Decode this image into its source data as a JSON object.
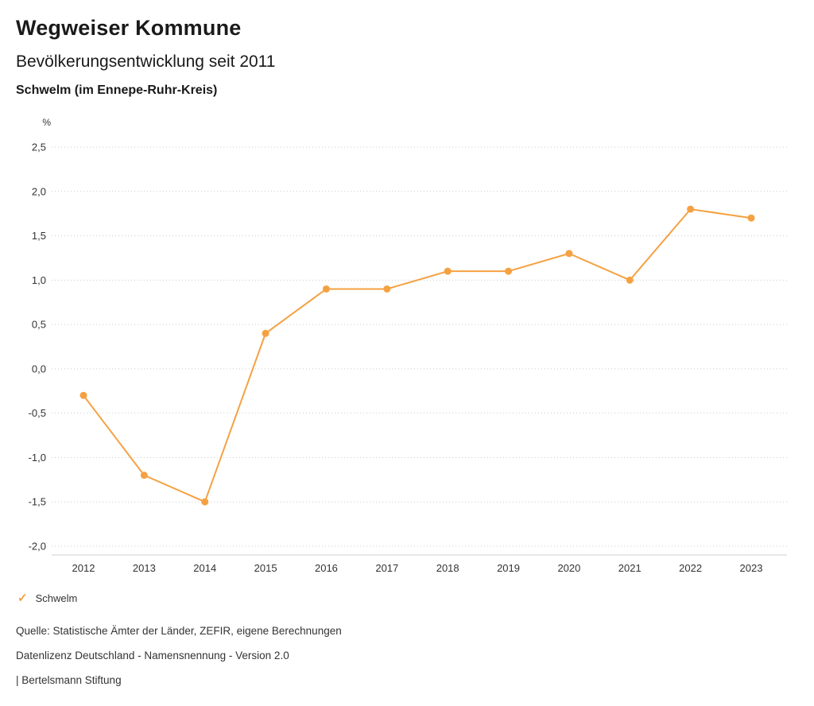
{
  "header": {
    "title": "Wegweiser Kommune",
    "subtitle": "Bevölkerungsentwicklung seit 2011",
    "location": "Schwelm (im Ennepe-Ruhr-Kreis)"
  },
  "chart_data": {
    "type": "line",
    "title": "Bevölkerungsentwicklung seit 2011",
    "subtitle": "Schwelm (im Ennepe-Ruhr-Kreis)",
    "ylabel": "%",
    "xlabel": "",
    "categories": [
      "2012",
      "2013",
      "2014",
      "2015",
      "2016",
      "2017",
      "2018",
      "2019",
      "2020",
      "2021",
      "2022",
      "2023"
    ],
    "series": [
      {
        "name": "Schwelm",
        "color": "#F5A142",
        "values": [
          -0.3,
          -1.2,
          -1.5,
          0.4,
          0.9,
          0.9,
          1.1,
          1.1,
          1.3,
          1.0,
          1.8,
          1.7
        ]
      }
    ],
    "ylim": [
      -2.0,
      2.5
    ],
    "yticks": [
      2.5,
      2.0,
      1.5,
      1.0,
      0.5,
      0.0,
      -0.5,
      -1.0,
      -1.5,
      -2.0
    ],
    "ytick_labels": [
      "2,5",
      "2,0",
      "1,5",
      "1,0",
      "0,5",
      "0,0",
      "-0,5",
      "-1,0",
      "-1,5",
      "-2,0"
    ],
    "grid": "horizontal-dotted",
    "legend_position": "bottom-left"
  },
  "legend": {
    "items": [
      {
        "label": "Schwelm",
        "color": "#F5A142",
        "symbol": "check-icon"
      }
    ]
  },
  "footer": {
    "source": "Quelle: Statistische Ämter der Länder, ZEFIR, eigene Berechnungen",
    "license": "Datenlizenz Deutschland - Namensnennung - Version 2.0",
    "attribution": "| Bertelsmann Stiftung"
  }
}
